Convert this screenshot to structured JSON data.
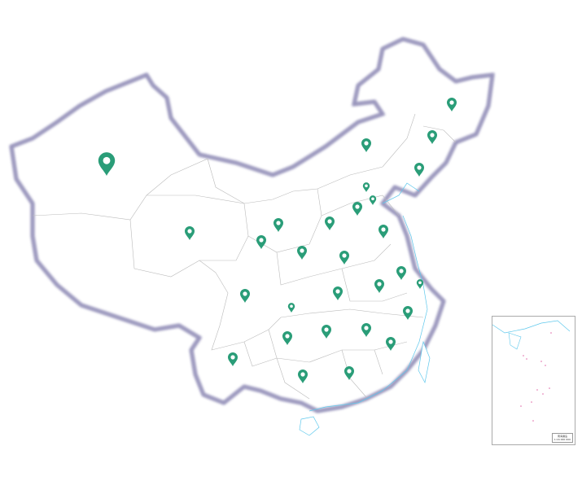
{
  "map": {
    "region": "China",
    "colors": {
      "border": "#9a98b8",
      "province_line": "#bbbbbb",
      "fill": "#ffffff",
      "water": "#5ec8ec",
      "pin": "#2a9d78",
      "islands": "#e06aa8"
    },
    "markers": [
      {
        "id": "xinjiang",
        "size": "large"
      },
      {
        "id": "heilongjiang",
        "size": "normal"
      },
      {
        "id": "jilin",
        "size": "normal"
      },
      {
        "id": "inner-mongolia",
        "size": "normal"
      },
      {
        "id": "liaoning",
        "size": "normal"
      },
      {
        "id": "beijing",
        "size": "small"
      },
      {
        "id": "tianjin",
        "size": "small"
      },
      {
        "id": "hebei",
        "size": "normal"
      },
      {
        "id": "shanxi",
        "size": "normal"
      },
      {
        "id": "ningxia",
        "size": "normal"
      },
      {
        "id": "qinghai",
        "size": "normal"
      },
      {
        "id": "shandong",
        "size": "normal"
      },
      {
        "id": "gansu",
        "size": "normal"
      },
      {
        "id": "shaanxi",
        "size": "normal"
      },
      {
        "id": "henan",
        "size": "normal"
      },
      {
        "id": "jiangsu",
        "size": "normal"
      },
      {
        "id": "anhui",
        "size": "normal"
      },
      {
        "id": "shanghai",
        "size": "small"
      },
      {
        "id": "sichuan",
        "size": "normal"
      },
      {
        "id": "hubei",
        "size": "normal"
      },
      {
        "id": "chongqing",
        "size": "small"
      },
      {
        "id": "zhejiang",
        "size": "normal"
      },
      {
        "id": "hunan",
        "size": "normal"
      },
      {
        "id": "jiangxi",
        "size": "normal"
      },
      {
        "id": "guizhou",
        "size": "normal"
      },
      {
        "id": "fujian",
        "size": "normal"
      },
      {
        "id": "yunnan",
        "size": "normal"
      },
      {
        "id": "guangdong",
        "size": "normal"
      },
      {
        "id": "guangxi",
        "size": "normal"
      }
    ],
    "inset": {
      "title": "南海诸岛",
      "scale": "1:16 000 000"
    }
  }
}
